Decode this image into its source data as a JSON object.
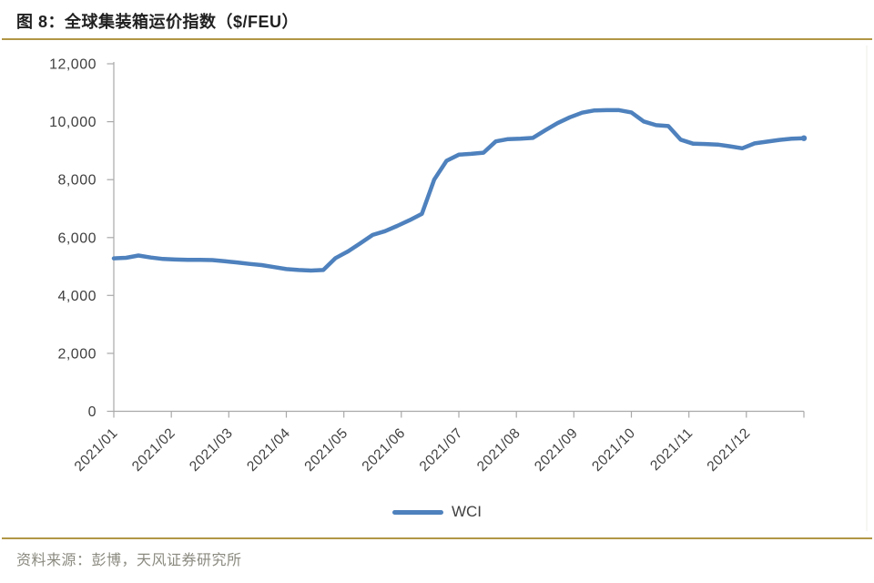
{
  "header": {
    "title": "图 8：全球集装箱运价指数（$/FEU）"
  },
  "chart_data": {
    "type": "line",
    "title": "全球集装箱运价指数（$/FEU）",
    "x_unit": "weekly observations, Jan–Dec 2021",
    "x_tick_labels": [
      "2021/01",
      "2021/02",
      "2021/03",
      "2021/04",
      "2021/05",
      "2021/06",
      "2021/07",
      "2021/08",
      "2021/09",
      "2021/10",
      "2021/11",
      "2021/12"
    ],
    "y_ticks": [
      0,
      2000,
      4000,
      6000,
      8000,
      10000,
      12000
    ],
    "y_tick_labels": [
      "0",
      "2,000",
      "4,000",
      "6,000",
      "8,000",
      "10,000",
      "12,000"
    ],
    "ylim": [
      0,
      12000
    ],
    "grid": false,
    "legend_position": "bottom-center",
    "series": [
      {
        "name": "WCI",
        "color": "#4E81BD",
        "values": [
          5280,
          5300,
          5380,
          5310,
          5260,
          5240,
          5230,
          5230,
          5220,
          5180,
          5140,
          5090,
          5050,
          4980,
          4910,
          4880,
          4860,
          4880,
          5290,
          5520,
          5800,
          6090,
          6220,
          6400,
          6600,
          6820,
          8000,
          8650,
          8860,
          8890,
          8930,
          9320,
          9400,
          9410,
          9440,
          9700,
          9950,
          10150,
          10310,
          10390,
          10400,
          10400,
          10320,
          10010,
          9880,
          9850,
          9380,
          9240,
          9230,
          9210,
          9150,
          9080,
          9250,
          9310,
          9370,
          9410,
          9430
        ]
      }
    ]
  },
  "legend": {
    "label": "WCI"
  },
  "footer": {
    "source": "资料来源：彭博，天风证券研究所"
  },
  "colors": {
    "accent_gold": "#B19646",
    "line_blue": "#4E81BD",
    "axis_gray": "#A9A9A9",
    "tick_text": "#3F3F3F",
    "footer_text": "#8B8A80"
  }
}
